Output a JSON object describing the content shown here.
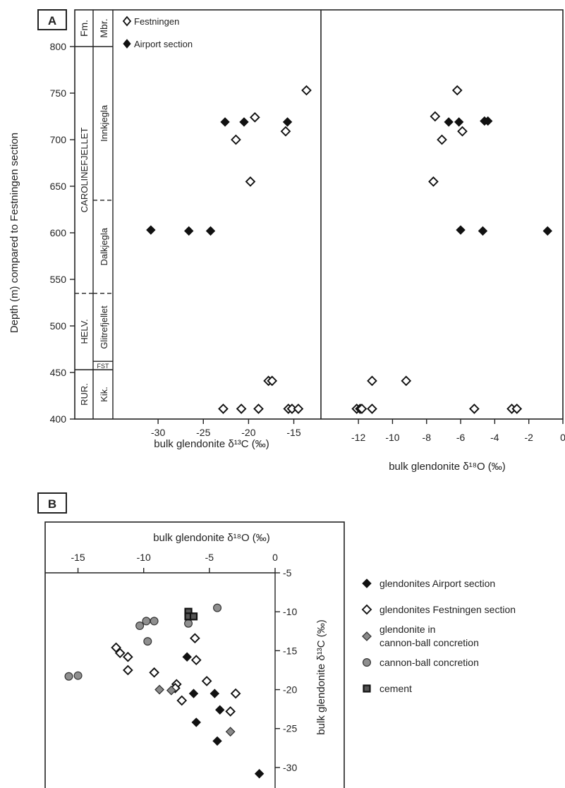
{
  "panel_a": {
    "label": "A",
    "y_axis_label": "Depth (m) compared to Festningen section",
    "strat": {
      "fm_header": "Fm.",
      "mbr_header": "Mbr.",
      "formations": [
        {
          "name": "CAROLINEFJELLET",
          "from": 535,
          "to": 800
        },
        {
          "name": "HELV.",
          "from": 453,
          "to": 535
        },
        {
          "name": "RUR.",
          "from": 400,
          "to": 453
        }
      ],
      "members": [
        {
          "name": "Innkjegla",
          "from": 635,
          "to": 800,
          "top_dash": false
        },
        {
          "name": "Dalkjegla",
          "from": 535,
          "to": 635,
          "top_dash": true
        },
        {
          "name": "Glitrefjellet",
          "from": 462,
          "to": 535,
          "top_dash": true
        },
        {
          "name": "FST",
          "from": 453,
          "to": 462,
          "top_dash": false
        },
        {
          "name": "Kik.",
          "from": 400,
          "to": 453,
          "top_dash": false
        }
      ]
    },
    "legend": {
      "festningen": "Festningen",
      "airport": "Airport section"
    }
  },
  "panel_b": {
    "label": "B",
    "x_axis_label": "bulk glendonite δ¹⁸O (‰)",
    "y_axis_label": "bulk glendonite δ¹³C (‰)",
    "legend": [
      {
        "key": "airport",
        "text": "glendonites Airport section"
      },
      {
        "key": "festningen",
        "text": "glendonites Festningen section"
      },
      {
        "key": "cbglend",
        "text": "glendonite in\ncannon-ball concretion"
      },
      {
        "key": "cbconc",
        "text": "cannon-ball concretion"
      },
      {
        "key": "cement",
        "text": "cement"
      }
    ]
  },
  "colors": {
    "black": "#111111",
    "white": "#ffffff",
    "grey_diamond": "#8a8a8a",
    "grey_circle": "#8f8f8f",
    "frame": "#222222"
  },
  "chart_data": [
    {
      "type": "scatter",
      "title": "",
      "xlabel": "bulk glendonite δ¹³C (‰)",
      "ylabel": "Depth (m) compared to Festningen section",
      "xlim": [
        -35,
        -12
      ],
      "ylim": [
        400,
        800
      ],
      "xticks": [
        -30,
        -25,
        -20,
        -15
      ],
      "yticks": [
        400,
        450,
        500,
        550,
        600,
        650,
        700,
        750,
        800
      ],
      "series": [
        {
          "name": "Festningen",
          "marker": "open-diamond",
          "points": [
            [
              -13.6,
              753
            ],
            [
              -19.3,
              724
            ],
            [
              -15.9,
              709
            ],
            [
              -21.4,
              700
            ],
            [
              -19.8,
              655
            ],
            [
              -17.8,
              441
            ],
            [
              -17.4,
              441
            ],
            [
              -22.8,
              411
            ],
            [
              -20.8,
              411
            ],
            [
              -18.9,
              411
            ],
            [
              -15.6,
              411
            ],
            [
              -15.2,
              411
            ],
            [
              -14.5,
              411
            ]
          ]
        },
        {
          "name": "Airport section",
          "marker": "filled-diamond",
          "points": [
            [
              -22.6,
              719
            ],
            [
              -20.5,
              719
            ],
            [
              -15.7,
              719
            ],
            [
              -30.8,
              603
            ],
            [
              -26.6,
              602
            ],
            [
              -24.2,
              602
            ]
          ]
        }
      ]
    },
    {
      "type": "scatter",
      "title": "",
      "xlabel": "bulk glendonite δ¹⁸O (‰)",
      "ylabel": "",
      "xlim": [
        -14.2,
        0
      ],
      "ylim": [
        400,
        800
      ],
      "xticks": [
        -12,
        -10,
        -8,
        -6,
        -4,
        -2,
        0
      ],
      "series": [
        {
          "name": "Festningen",
          "marker": "open-diamond",
          "points": [
            [
              -6.2,
              753
            ],
            [
              -7.5,
              725
            ],
            [
              -5.9,
              709
            ],
            [
              -7.1,
              700
            ],
            [
              -7.6,
              655
            ],
            [
              -11.2,
              441
            ],
            [
              -9.2,
              441
            ],
            [
              -12.1,
              411
            ],
            [
              -11.9,
              411
            ],
            [
              -11.8,
              411
            ],
            [
              -11.2,
              411
            ],
            [
              -5.2,
              411
            ],
            [
              -3.0,
              411
            ],
            [
              -2.7,
              411
            ]
          ]
        },
        {
          "name": "Airport section",
          "marker": "filled-diamond",
          "points": [
            [
              -6.7,
              719
            ],
            [
              -6.1,
              719
            ],
            [
              -4.6,
              720
            ],
            [
              -4.4,
              720
            ],
            [
              -6.0,
              603
            ],
            [
              -4.7,
              602
            ],
            [
              -0.9,
              602
            ]
          ]
        }
      ]
    },
    {
      "type": "scatter",
      "title": "",
      "xlabel": "bulk glendonite δ¹⁸O (‰)",
      "ylabel": "bulk glendonite δ¹³C (‰)",
      "xlim": [
        -17.5,
        0
      ],
      "ylim": [
        -32,
        -5
      ],
      "xticks": [
        -15,
        -10,
        -5,
        0
      ],
      "yticks": [
        -5,
        -10,
        -15,
        -20,
        -25,
        -30
      ],
      "series": [
        {
          "name": "glendonites Airport section",
          "marker": "filled-diamond",
          "points": [
            [
              -6.7,
              -15.8
            ],
            [
              -4.6,
              -20.5
            ],
            [
              -6.2,
              -20.5
            ],
            [
              -4.2,
              -22.6
            ],
            [
              -6.0,
              -24.2
            ],
            [
              -4.4,
              -26.6
            ],
            [
              -1.2,
              -30.8
            ]
          ]
        },
        {
          "name": "glendonites Festningen section",
          "marker": "open-diamond",
          "points": [
            [
              -12.1,
              -14.6
            ],
            [
              -11.8,
              -15.3
            ],
            [
              -11.2,
              -15.8
            ],
            [
              -6.1,
              -13.4
            ],
            [
              -6.0,
              -16.2
            ],
            [
              -11.2,
              -17.5
            ],
            [
              -9.2,
              -17.8
            ],
            [
              -7.5,
              -19.3
            ],
            [
              -7.6,
              -19.8
            ],
            [
              -7.1,
              -21.4
            ],
            [
              -5.2,
              -18.9
            ],
            [
              -3.0,
              -20.5
            ],
            [
              -3.4,
              -22.8
            ]
          ]
        },
        {
          "name": "glendonite in cannon-ball concretion",
          "marker": "grey-diamond",
          "points": [
            [
              -8.8,
              -20.0
            ],
            [
              -7.9,
              -20.1
            ],
            [
              -3.4,
              -25.4
            ]
          ]
        },
        {
          "name": "cannon-ball concretion",
          "marker": "grey-circle",
          "points": [
            [
              -15.7,
              -18.3
            ],
            [
              -15.0,
              -18.2
            ],
            [
              -10.3,
              -11.8
            ],
            [
              -9.8,
              -11.2
            ],
            [
              -9.2,
              -11.2
            ],
            [
              -9.7,
              -13.8
            ],
            [
              -6.6,
              -11.5
            ],
            [
              -4.4,
              -9.5
            ]
          ]
        },
        {
          "name": "cement",
          "marker": "square",
          "points": [
            [
              -6.6,
              -10.0
            ],
            [
              -6.6,
              -10.6
            ],
            [
              -6.2,
              -10.6
            ]
          ]
        }
      ]
    }
  ]
}
